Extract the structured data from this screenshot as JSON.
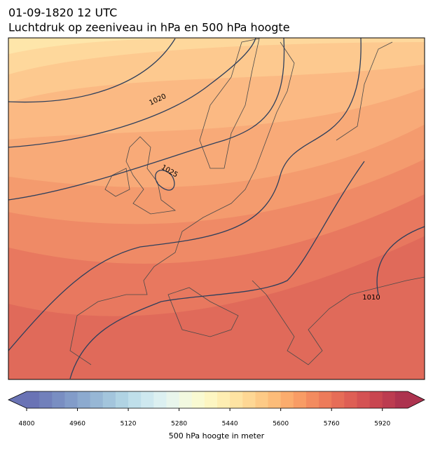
{
  "title": "01-09-1820 12 UTC",
  "subtitle": "Luchtdruk op zeeniveau in hPa en 500 hPa hoogte",
  "isobar_labels": [
    "1020",
    "1025",
    "1010"
  ],
  "colorbar": {
    "label": "500 hPa hoogte in meter",
    "range": [
      4800,
      6000
    ],
    "ticks": [
      4800,
      4960,
      5120,
      5280,
      5440,
      5600,
      5760,
      5920
    ],
    "colors": [
      "#6a73b5",
      "#7180bb",
      "#798ec2",
      "#829cc9",
      "#8caacf",
      "#97b7d5",
      "#a3c5dc",
      "#b0d3e3",
      "#bfdfea",
      "#cee8ef",
      "#dcf0f1",
      "#e8f5ec",
      "#f2f9e0",
      "#f9fad2",
      "#fdf6c2",
      "#feeeb2",
      "#fee3a2",
      "#fed794",
      "#fdca86",
      "#fcbc79",
      "#fbac6d",
      "#f89c65",
      "#f38b5f",
      "#ed7b5a",
      "#e66d57",
      "#de5f55",
      "#d45253",
      "#c94650",
      "#bc3c50",
      "#ad334f"
    ]
  }
}
